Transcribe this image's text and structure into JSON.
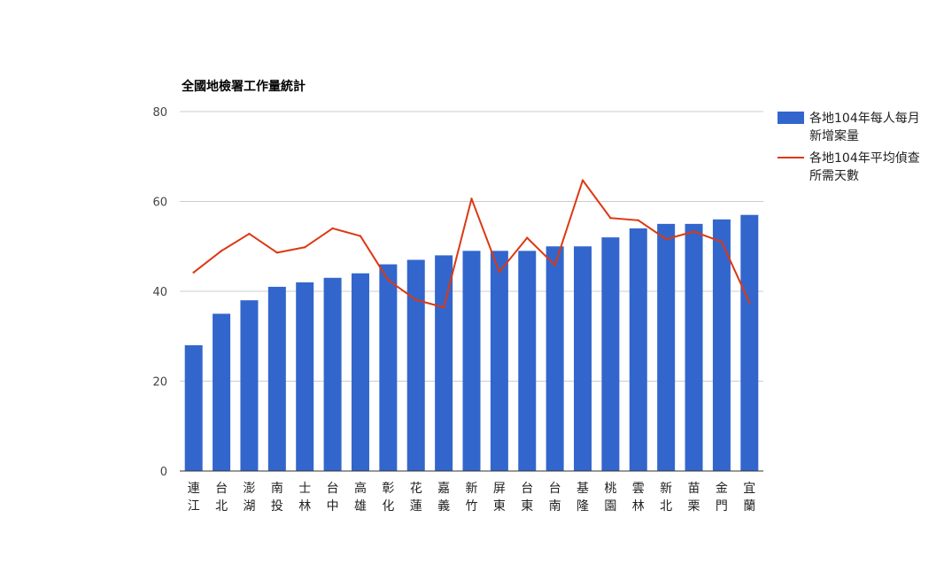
{
  "chart_data": {
    "type": "bar",
    "title": "全國地檢署工作量統計",
    "xlabel": "",
    "ylabel": "",
    "ylim": [
      0,
      80
    ],
    "yticks": [
      0,
      20,
      40,
      60,
      80
    ],
    "grid": true,
    "legend_position": "right",
    "categories": [
      [
        "連",
        "江"
      ],
      [
        "台",
        "北"
      ],
      [
        "澎",
        "湖"
      ],
      [
        "南",
        "投"
      ],
      [
        "士",
        "林"
      ],
      [
        "台",
        "中"
      ],
      [
        "高",
        "雄"
      ],
      [
        "彰",
        "化"
      ],
      [
        "花",
        "蓮"
      ],
      [
        "嘉",
        "義"
      ],
      [
        "新",
        "竹"
      ],
      [
        "屏",
        "東"
      ],
      [
        "台",
        "東"
      ],
      [
        "台",
        "南"
      ],
      [
        "基",
        "隆"
      ],
      [
        "桃",
        "園"
      ],
      [
        "雲",
        "林"
      ],
      [
        "新",
        "北"
      ],
      [
        "苗",
        "栗"
      ],
      [
        "金",
        "門"
      ],
      [
        "宜",
        "蘭"
      ]
    ],
    "series": [
      {
        "name": "各地104年每人每月新增案量",
        "legend_lines": [
          "各地104年每人每月",
          "新增案量"
        ],
        "type": "bar",
        "color": "#3366cc",
        "values": [
          28,
          35,
          38,
          41,
          42,
          43,
          44,
          46,
          47,
          48,
          49,
          49,
          49,
          50,
          50,
          52,
          54,
          55,
          55,
          56,
          57
        ]
      },
      {
        "name": "各地104年平均偵查所需天數",
        "legend_lines": [
          "各地104年平均偵查",
          "所需天數"
        ],
        "type": "line",
        "color": "#dc3912",
        "values": [
          44.2,
          49.0,
          52.8,
          48.6,
          49.8,
          54.0,
          52.3,
          42.5,
          38.1,
          36.4,
          60.6,
          44.3,
          51.9,
          45.8,
          64.7,
          56.3,
          55.8,
          51.6,
          53.3,
          51.0,
          37.5
        ]
      }
    ]
  }
}
